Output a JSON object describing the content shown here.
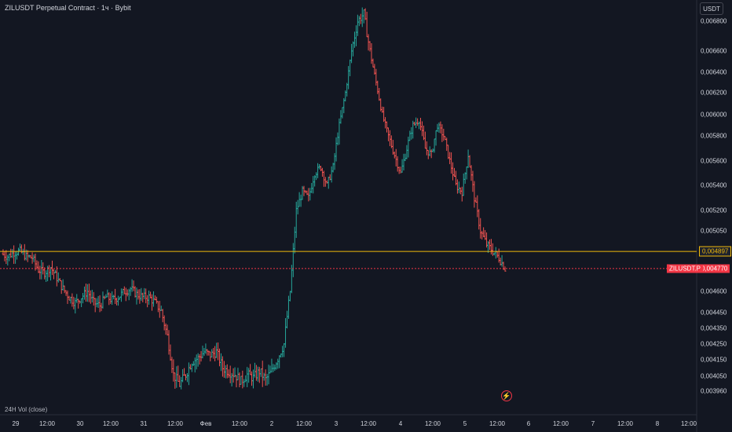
{
  "header": {
    "title": "ZILUSDT Perpetual Contract · 1ч · Bybit",
    "currency_button": "USDT"
  },
  "indicator": {
    "label": "24H Vol (close)"
  },
  "price_axis": {
    "ticks": [
      "0,006800",
      "0,006600",
      "0,006400",
      "0,006200",
      "0,006000",
      "0,005800",
      "0,005600",
      "0,005400",
      "0,005200",
      "0,005050",
      "0,004600",
      "0,004450",
      "0,004350",
      "0,004250",
      "0,004150",
      "0,004050",
      "0,003960"
    ]
  },
  "time_axis": {
    "ticks": [
      "29",
      "12:00",
      "30",
      "12:00",
      "31",
      "12:00",
      "Фев",
      "12:00",
      "2",
      "12:00",
      "3",
      "12:00",
      "4",
      "12:00",
      "5",
      "12:00",
      "6",
      "12:00",
      "7",
      "12:00",
      "8",
      "12:00"
    ]
  },
  "lines": {
    "yellow_level": "0,004897",
    "current_price": "0,004770",
    "symbol_tag": "ZILUSDT.P"
  },
  "colors": {
    "up": "#26a69a",
    "down": "#ef5350",
    "yellow": "#f0b90b",
    "red_tag": "#f23645",
    "background": "#131722"
  },
  "chart_data": {
    "type": "ohlc",
    "y_ticks": [
      0.0068,
      0.0066,
      0.0064,
      0.0062,
      0.006,
      0.0058,
      0.0056,
      0.0054,
      0.0052,
      0.00505,
      0.0046,
      0.00445,
      0.00435,
      0.00425,
      0.00415,
      0.00405,
      0.00396
    ],
    "x_ticks": [
      "29",
      "12:00",
      "30",
      "12:00",
      "31",
      "12:00",
      "Фев",
      "12:00",
      "2",
      "12:00",
      "3",
      "12:00",
      "4",
      "12:00",
      "5",
      "12:00",
      "6",
      "12:00",
      "7",
      "12:00",
      "8",
      "12:00"
    ],
    "horizontal_line": 0.004897,
    "last_price": 0.00477,
    "close_path": [
      0.00488,
      0.00486,
      0.00489,
      0.0049,
      0.00486,
      0.00485,
      0.00476,
      0.00474,
      0.00478,
      0.0047,
      0.00462,
      0.00456,
      0.00452,
      0.00456,
      0.0046,
      0.00452,
      0.0045,
      0.00456,
      0.00454,
      0.00456,
      0.0046,
      0.00462,
      0.00458,
      0.00456,
      0.00456,
      0.00452,
      0.00446,
      0.0043,
      0.00406,
      0.004,
      0.00406,
      0.00414,
      0.00416,
      0.0042,
      0.00418,
      0.0042,
      0.0041,
      0.00408,
      0.00406,
      0.00402,
      0.00406,
      0.00404,
      0.00408,
      0.00403,
      0.00408,
      0.00416,
      0.00425,
      0.0046,
      0.0052,
      0.00535,
      0.0053,
      0.0055,
      0.00555,
      0.0054,
      0.00555,
      0.0059,
      0.0062,
      0.0066,
      0.0068,
      0.00685,
      0.0066,
      0.0063,
      0.006,
      0.0058,
      0.00565,
      0.0055,
      0.0057,
      0.0059,
      0.00595,
      0.0057,
      0.00565,
      0.0059,
      0.0058,
      0.0056,
      0.0054,
      0.00535,
      0.00565,
      0.0053,
      0.00505,
      0.00495,
      0.0049,
      0.00485,
      0.00477
    ]
  }
}
